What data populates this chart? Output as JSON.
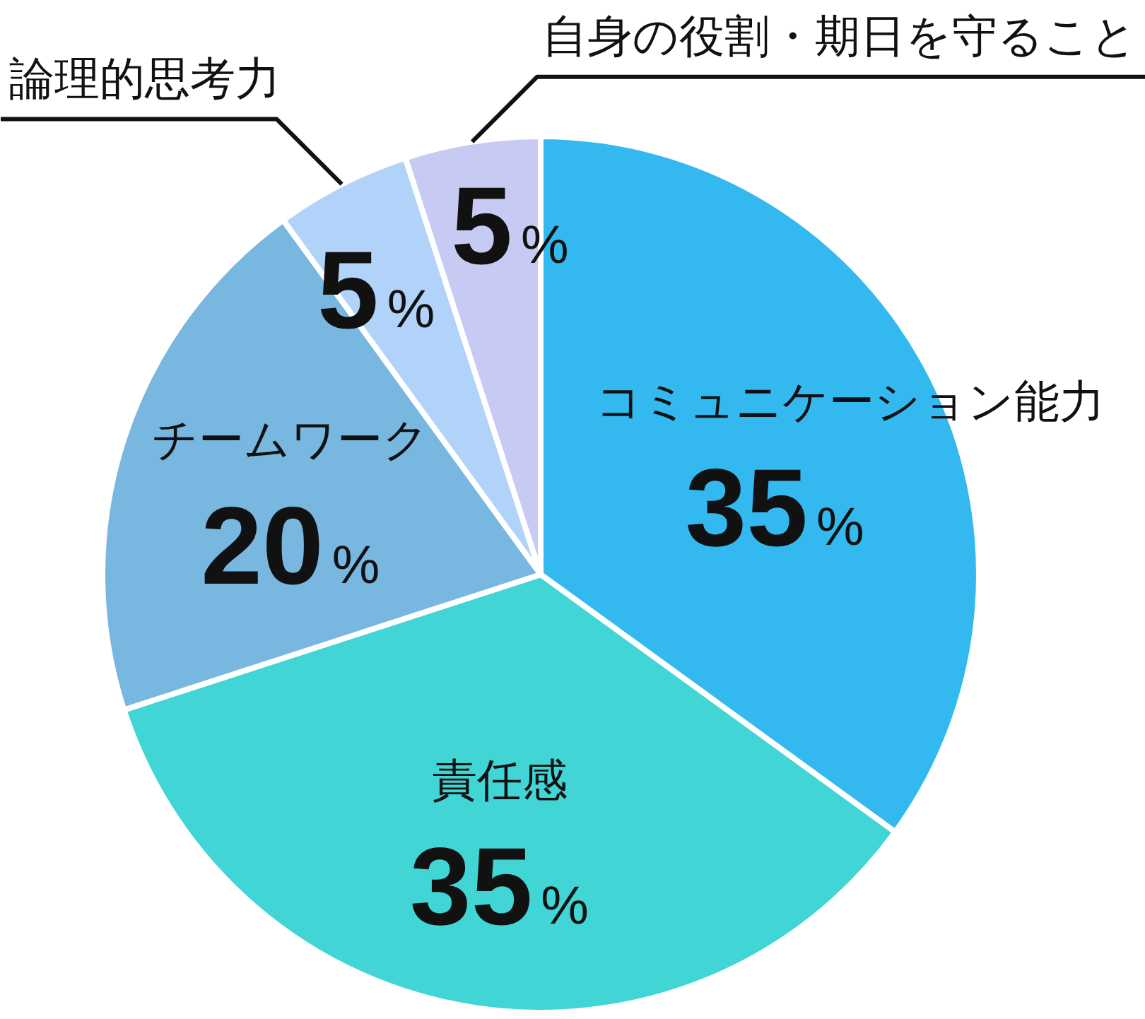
{
  "chart_data": {
    "type": "pie",
    "categories": [
      "コミュニケーション能力",
      "責任感",
      "チームワーク",
      "論理的思考力",
      "自身の役割・期日を守ること"
    ],
    "values": [
      35,
      35,
      20,
      5,
      5
    ],
    "colors": [
      "#33b9f0",
      "#41d5d6",
      "#78b7e0",
      "#b2d3f9",
      "#c7caf2"
    ],
    "value_labels": [
      "35%",
      "35%",
      "20%",
      "5%",
      "5%"
    ]
  }
}
